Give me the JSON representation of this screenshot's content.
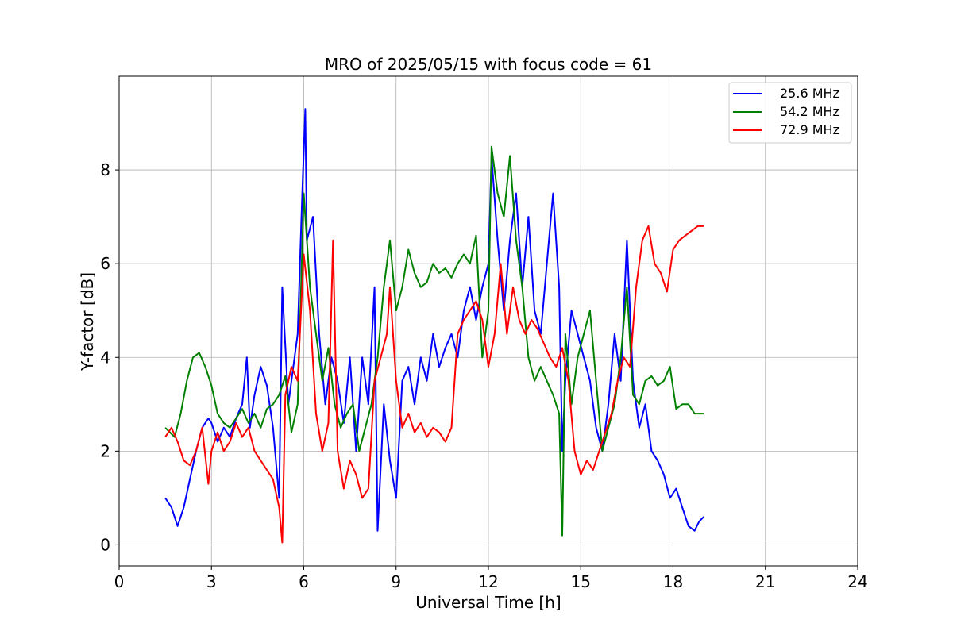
{
  "chart_data": {
    "type": "line",
    "title": "MRO of 2025/05/15 with focus code = 61",
    "xlabel": "Universal Time [h]",
    "ylabel": "Y-factor [dB]",
    "xlim": [
      0,
      24
    ],
    "ylim": [
      -0.45,
      10.0
    ],
    "xticks": [
      0,
      3,
      6,
      9,
      12,
      15,
      18,
      21,
      24
    ],
    "yticks": [
      0,
      2,
      4,
      6,
      8
    ],
    "grid": true,
    "legend_position": "top-right",
    "series": [
      {
        "name": "25.6 MHz",
        "color": "#0000ff",
        "points": [
          [
            1.5,
            1.0
          ],
          [
            1.7,
            0.8
          ],
          [
            1.9,
            0.4
          ],
          [
            2.1,
            0.8
          ],
          [
            2.3,
            1.4
          ],
          [
            2.5,
            2.0
          ],
          [
            2.7,
            2.5
          ],
          [
            2.9,
            2.7
          ],
          [
            3.0,
            2.6
          ],
          [
            3.2,
            2.2
          ],
          [
            3.4,
            2.5
          ],
          [
            3.6,
            2.3
          ],
          [
            3.8,
            2.7
          ],
          [
            4.0,
            3.0
          ],
          [
            4.15,
            4.0
          ],
          [
            4.25,
            2.5
          ],
          [
            4.4,
            3.2
          ],
          [
            4.6,
            3.8
          ],
          [
            4.8,
            3.4
          ],
          [
            5.0,
            2.5
          ],
          [
            5.2,
            1.0
          ],
          [
            5.3,
            5.5
          ],
          [
            5.5,
            3.0
          ],
          [
            5.8,
            4.5
          ],
          [
            5.95,
            7.5
          ],
          [
            6.05,
            9.3
          ],
          [
            6.1,
            6.5
          ],
          [
            6.3,
            7.0
          ],
          [
            6.5,
            4.5
          ],
          [
            6.7,
            3.0
          ],
          [
            6.9,
            4.0
          ],
          [
            7.1,
            3.5
          ],
          [
            7.3,
            2.6
          ],
          [
            7.5,
            4.0
          ],
          [
            7.7,
            2.0
          ],
          [
            7.9,
            4.0
          ],
          [
            8.1,
            3.0
          ],
          [
            8.3,
            5.5
          ],
          [
            8.4,
            0.3
          ],
          [
            8.6,
            3.0
          ],
          [
            8.8,
            1.8
          ],
          [
            9.0,
            1.0
          ],
          [
            9.2,
            3.5
          ],
          [
            9.4,
            3.8
          ],
          [
            9.6,
            3.0
          ],
          [
            9.8,
            4.0
          ],
          [
            10.0,
            3.5
          ],
          [
            10.2,
            4.5
          ],
          [
            10.4,
            3.8
          ],
          [
            10.6,
            4.2
          ],
          [
            10.8,
            4.5
          ],
          [
            11.0,
            4.0
          ],
          [
            11.2,
            5.0
          ],
          [
            11.4,
            5.5
          ],
          [
            11.6,
            4.8
          ],
          [
            11.8,
            5.5
          ],
          [
            12.0,
            6.0
          ],
          [
            12.1,
            8.3
          ],
          [
            12.3,
            6.5
          ],
          [
            12.5,
            5.0
          ],
          [
            12.7,
            6.5
          ],
          [
            12.9,
            7.5
          ],
          [
            13.1,
            5.5
          ],
          [
            13.3,
            7.0
          ],
          [
            13.5,
            5.0
          ],
          [
            13.7,
            4.5
          ],
          [
            13.9,
            6.0
          ],
          [
            14.1,
            7.5
          ],
          [
            14.3,
            5.5
          ],
          [
            14.4,
            2.0
          ],
          [
            14.5,
            3.5
          ],
          [
            14.7,
            5.0
          ],
          [
            14.9,
            4.5
          ],
          [
            15.1,
            4.0
          ],
          [
            15.3,
            3.5
          ],
          [
            15.5,
            2.5
          ],
          [
            15.7,
            2.0
          ],
          [
            15.9,
            3.0
          ],
          [
            16.1,
            4.5
          ],
          [
            16.3,
            3.5
          ],
          [
            16.5,
            6.5
          ],
          [
            16.7,
            3.5
          ],
          [
            16.9,
            2.5
          ],
          [
            17.1,
            3.0
          ],
          [
            17.3,
            2.0
          ],
          [
            17.5,
            1.8
          ],
          [
            17.7,
            1.5
          ],
          [
            17.9,
            1.0
          ],
          [
            18.1,
            1.2
          ],
          [
            18.3,
            0.8
          ],
          [
            18.5,
            0.4
          ],
          [
            18.7,
            0.3
          ],
          [
            18.85,
            0.5
          ],
          [
            19.0,
            0.6
          ]
        ]
      },
      {
        "name": "54.2 MHz",
        "color": "#008000",
        "points": [
          [
            1.5,
            2.5
          ],
          [
            1.8,
            2.3
          ],
          [
            2.0,
            2.8
          ],
          [
            2.2,
            3.5
          ],
          [
            2.4,
            4.0
          ],
          [
            2.6,
            4.1
          ],
          [
            2.8,
            3.8
          ],
          [
            3.0,
            3.4
          ],
          [
            3.2,
            2.8
          ],
          [
            3.4,
            2.6
          ],
          [
            3.6,
            2.5
          ],
          [
            3.8,
            2.7
          ],
          [
            4.0,
            2.9
          ],
          [
            4.2,
            2.6
          ],
          [
            4.4,
            2.8
          ],
          [
            4.6,
            2.5
          ],
          [
            4.8,
            2.9
          ],
          [
            5.0,
            3.0
          ],
          [
            5.2,
            3.2
          ],
          [
            5.4,
            3.6
          ],
          [
            5.6,
            2.4
          ],
          [
            5.8,
            3.0
          ],
          [
            6.0,
            7.5
          ],
          [
            6.2,
            5.5
          ],
          [
            6.4,
            4.5
          ],
          [
            6.6,
            3.5
          ],
          [
            6.8,
            4.2
          ],
          [
            7.0,
            3.0
          ],
          [
            7.2,
            2.5
          ],
          [
            7.4,
            2.8
          ],
          [
            7.6,
            3.0
          ],
          [
            7.8,
            2.0
          ],
          [
            8.0,
            2.5
          ],
          [
            8.2,
            3.0
          ],
          [
            8.4,
            4.0
          ],
          [
            8.6,
            5.5
          ],
          [
            8.8,
            6.5
          ],
          [
            9.0,
            5.0
          ],
          [
            9.2,
            5.5
          ],
          [
            9.4,
            6.3
          ],
          [
            9.6,
            5.8
          ],
          [
            9.8,
            5.5
          ],
          [
            10.0,
            5.6
          ],
          [
            10.2,
            6.0
          ],
          [
            10.4,
            5.8
          ],
          [
            10.6,
            5.9
          ],
          [
            10.8,
            5.7
          ],
          [
            11.0,
            6.0
          ],
          [
            11.2,
            6.2
          ],
          [
            11.4,
            6.0
          ],
          [
            11.6,
            6.6
          ],
          [
            11.8,
            4.0
          ],
          [
            12.0,
            5.0
          ],
          [
            12.1,
            8.5
          ],
          [
            12.3,
            7.5
          ],
          [
            12.5,
            7.0
          ],
          [
            12.7,
            8.3
          ],
          [
            12.9,
            6.5
          ],
          [
            13.1,
            5.5
          ],
          [
            13.3,
            4.0
          ],
          [
            13.5,
            3.5
          ],
          [
            13.7,
            3.8
          ],
          [
            13.9,
            3.5
          ],
          [
            14.1,
            3.2
          ],
          [
            14.3,
            2.8
          ],
          [
            14.4,
            0.2
          ],
          [
            14.5,
            4.5
          ],
          [
            14.7,
            3.0
          ],
          [
            14.9,
            4.0
          ],
          [
            15.1,
            4.5
          ],
          [
            15.3,
            5.0
          ],
          [
            15.5,
            3.5
          ],
          [
            15.7,
            2.0
          ],
          [
            15.9,
            2.5
          ],
          [
            16.1,
            3.0
          ],
          [
            16.3,
            4.0
          ],
          [
            16.5,
            5.5
          ],
          [
            16.7,
            3.2
          ],
          [
            16.9,
            3.0
          ],
          [
            17.1,
            3.5
          ],
          [
            17.3,
            3.6
          ],
          [
            17.5,
            3.4
          ],
          [
            17.7,
            3.5
          ],
          [
            17.9,
            3.8
          ],
          [
            18.1,
            2.9
          ],
          [
            18.3,
            3.0
          ],
          [
            18.5,
            3.0
          ],
          [
            18.7,
            2.8
          ],
          [
            19.0,
            2.8
          ]
        ]
      },
      {
        "name": "72.9 MHz",
        "color": "#ff0000",
        "points": [
          [
            1.5,
            2.3
          ],
          [
            1.7,
            2.5
          ],
          [
            1.9,
            2.2
          ],
          [
            2.1,
            1.8
          ],
          [
            2.3,
            1.7
          ],
          [
            2.5,
            2.0
          ],
          [
            2.7,
            2.5
          ],
          [
            2.9,
            1.3
          ],
          [
            3.0,
            2.0
          ],
          [
            3.2,
            2.4
          ],
          [
            3.4,
            2.0
          ],
          [
            3.6,
            2.2
          ],
          [
            3.8,
            2.6
          ],
          [
            4.0,
            2.3
          ],
          [
            4.2,
            2.5
          ],
          [
            4.4,
            2.0
          ],
          [
            4.6,
            1.8
          ],
          [
            4.8,
            1.6
          ],
          [
            5.0,
            1.4
          ],
          [
            5.2,
            0.8
          ],
          [
            5.3,
            0.05
          ],
          [
            5.4,
            3.2
          ],
          [
            5.6,
            3.8
          ],
          [
            5.8,
            3.5
          ],
          [
            6.0,
            6.2
          ],
          [
            6.2,
            5.0
          ],
          [
            6.4,
            2.8
          ],
          [
            6.6,
            2.0
          ],
          [
            6.8,
            2.6
          ],
          [
            6.95,
            6.5
          ],
          [
            7.1,
            2.0
          ],
          [
            7.3,
            1.2
          ],
          [
            7.5,
            1.8
          ],
          [
            7.7,
            1.5
          ],
          [
            7.9,
            1.0
          ],
          [
            8.1,
            1.2
          ],
          [
            8.3,
            3.5
          ],
          [
            8.5,
            4.0
          ],
          [
            8.7,
            4.5
          ],
          [
            8.8,
            5.5
          ],
          [
            9.0,
            3.5
          ],
          [
            9.2,
            2.5
          ],
          [
            9.4,
            2.8
          ],
          [
            9.6,
            2.4
          ],
          [
            9.8,
            2.6
          ],
          [
            10.0,
            2.3
          ],
          [
            10.2,
            2.5
          ],
          [
            10.4,
            2.4
          ],
          [
            10.6,
            2.2
          ],
          [
            10.8,
            2.5
          ],
          [
            11.0,
            4.5
          ],
          [
            11.2,
            4.8
          ],
          [
            11.4,
            5.0
          ],
          [
            11.6,
            5.2
          ],
          [
            11.8,
            4.8
          ],
          [
            12.0,
            3.8
          ],
          [
            12.2,
            4.5
          ],
          [
            12.4,
            6.0
          ],
          [
            12.6,
            4.5
          ],
          [
            12.8,
            5.5
          ],
          [
            13.0,
            4.8
          ],
          [
            13.2,
            4.5
          ],
          [
            13.4,
            4.8
          ],
          [
            13.6,
            4.6
          ],
          [
            13.8,
            4.3
          ],
          [
            14.0,
            4.0
          ],
          [
            14.2,
            3.8
          ],
          [
            14.4,
            4.2
          ],
          [
            14.6,
            3.5
          ],
          [
            14.8,
            2.0
          ],
          [
            15.0,
            1.5
          ],
          [
            15.2,
            1.8
          ],
          [
            15.4,
            1.6
          ],
          [
            15.6,
            2.0
          ],
          [
            15.8,
            2.4
          ],
          [
            16.0,
            2.8
          ],
          [
            16.2,
            3.5
          ],
          [
            16.4,
            4.0
          ],
          [
            16.6,
            3.8
          ],
          [
            16.8,
            5.5
          ],
          [
            17.0,
            6.5
          ],
          [
            17.2,
            6.8
          ],
          [
            17.4,
            6.0
          ],
          [
            17.6,
            5.8
          ],
          [
            17.8,
            5.4
          ],
          [
            18.0,
            6.3
          ],
          [
            18.2,
            6.5
          ],
          [
            18.4,
            6.6
          ],
          [
            18.6,
            6.7
          ],
          [
            18.8,
            6.8
          ],
          [
            19.0,
            6.8
          ]
        ]
      }
    ]
  }
}
